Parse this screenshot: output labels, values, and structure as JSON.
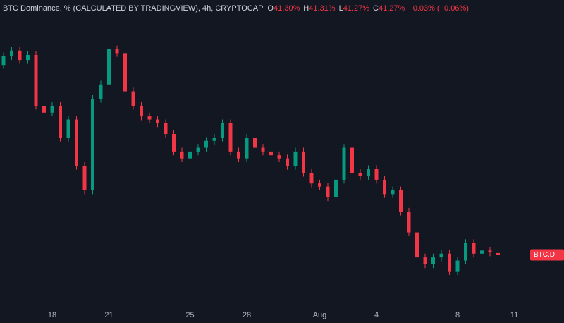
{
  "chart_data": {
    "type": "candlestick",
    "title": "BTC Dominance, % (CALCULATED BY TRADINGVIEW), 4h, CRYPTOCAP",
    "ohlc_legend": [
      {
        "name": "O",
        "text": "41.30%"
      },
      {
        "name": "H",
        "text": "41.31%"
      },
      {
        "name": "L",
        "text": "41.27%"
      },
      {
        "name": "C",
        "text": "41.27%"
      }
    ],
    "change": "−0.03% (−0.06%)",
    "price_label": "BTC.D",
    "up_color": "#089981",
    "down_color": "#f23645",
    "ylim": [
      40.5,
      45.0
    ],
    "x": [
      null,
      null,
      null,
      null,
      null,
      null,
      "18",
      null,
      null,
      null,
      null,
      null,
      null,
      "21",
      null,
      null,
      null,
      null,
      null,
      null,
      null,
      null,
      null,
      "25",
      null,
      null,
      null,
      null,
      null,
      null,
      "28",
      null,
      null,
      null,
      null,
      null,
      null,
      null,
      null,
      "Aug",
      null,
      null,
      null,
      null,
      null,
      null,
      "4",
      null,
      null,
      null,
      null,
      null,
      null,
      null,
      null,
      null,
      "8",
      null,
      null,
      null,
      null,
      null,
      null,
      "11"
    ],
    "open": [
      44.3,
      44.44,
      44.53,
      44.38,
      44.46,
      43.65,
      43.54,
      43.65,
      43.14,
      43.43,
      42.69,
      42.3,
      43.76,
      43.99,
      44.55,
      44.49,
      43.88,
      43.65,
      43.48,
      43.43,
      43.37,
      43.2,
      42.92,
      42.81,
      42.92,
      42.98,
      43.09,
      43.14,
      43.37,
      42.92,
      42.81,
      43.14,
      42.98,
      42.92,
      42.86,
      42.81,
      42.69,
      42.92,
      42.58,
      42.41,
      42.36,
      42.19,
      42.47,
      42.98,
      42.58,
      42.53,
      42.64,
      42.47,
      42.24,
      42.3,
      41.96,
      41.63,
      41.23,
      41.12,
      41.23,
      41.29,
      41.01,
      41.18,
      41.46,
      41.29,
      41.34,
      41.3,
      null,
      null
    ],
    "high": [
      44.5,
      44.59,
      44.59,
      44.52,
      44.52,
      43.71,
      43.71,
      43.71,
      43.49,
      43.49,
      42.75,
      43.82,
      44.05,
      44.61,
      44.61,
      44.55,
      43.94,
      43.71,
      43.54,
      43.49,
      43.43,
      43.26,
      42.98,
      42.98,
      43.04,
      43.15,
      43.2,
      43.43,
      43.43,
      42.98,
      43.2,
      43.2,
      43.04,
      42.98,
      42.92,
      42.87,
      42.98,
      42.98,
      42.64,
      42.47,
      42.42,
      42.53,
      43.04,
      43.04,
      42.64,
      42.7,
      42.7,
      42.53,
      42.36,
      42.36,
      42.02,
      41.69,
      41.29,
      41.29,
      41.35,
      41.35,
      41.24,
      41.52,
      41.52,
      41.4,
      41.4,
      41.31,
      null,
      null
    ],
    "low": [
      44.24,
      44.38,
      44.32,
      44.32,
      43.59,
      43.48,
      43.48,
      43.08,
      43.08,
      42.63,
      42.24,
      42.24,
      43.7,
      43.93,
      44.43,
      43.82,
      43.59,
      43.42,
      43.37,
      43.31,
      43.14,
      42.86,
      42.75,
      42.75,
      42.86,
      42.92,
      43.03,
      43.08,
      42.86,
      42.75,
      42.75,
      42.92,
      42.86,
      42.8,
      42.75,
      42.63,
      42.63,
      42.52,
      42.35,
      42.3,
      42.13,
      42.13,
      42.41,
      42.52,
      42.47,
      42.47,
      42.41,
      42.18,
      42.18,
      41.9,
      41.57,
      41.17,
      41.06,
      41.06,
      41.17,
      40.95,
      40.95,
      41.12,
      41.23,
      41.23,
      41.25,
      41.27,
      null,
      null
    ],
    "close": [
      44.44,
      44.53,
      44.38,
      44.46,
      43.65,
      43.54,
      43.65,
      43.14,
      43.43,
      42.69,
      42.3,
      43.76,
      43.99,
      44.55,
      44.49,
      43.88,
      43.65,
      43.48,
      43.43,
      43.37,
      43.2,
      42.92,
      42.81,
      42.92,
      42.98,
      43.09,
      43.14,
      43.37,
      42.92,
      42.81,
      43.14,
      42.98,
      42.92,
      42.86,
      42.81,
      42.69,
      42.92,
      42.58,
      42.41,
      42.36,
      42.19,
      42.47,
      42.98,
      42.58,
      42.53,
      42.64,
      42.47,
      42.24,
      42.3,
      41.96,
      41.63,
      41.23,
      41.12,
      41.23,
      41.29,
      41.01,
      41.18,
      41.46,
      41.29,
      41.34,
      41.31,
      41.27,
      null,
      null
    ]
  }
}
